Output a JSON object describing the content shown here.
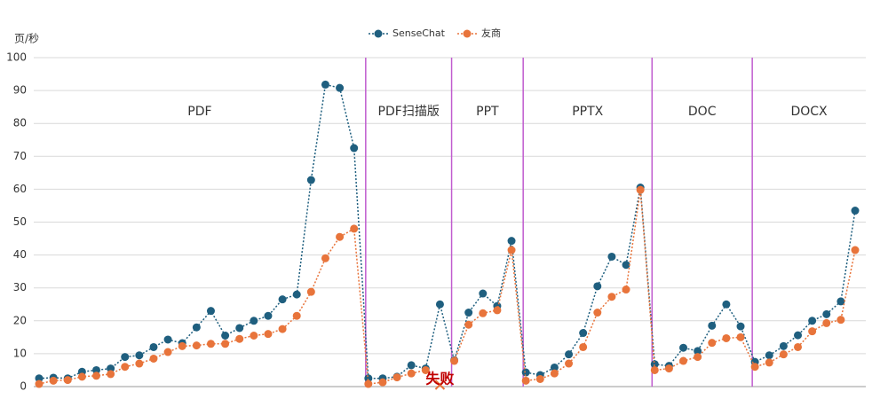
{
  "chart_data": {
    "type": "line",
    "y_label": "页/秒",
    "categories": [
      null,
      null,
      null,
      null,
      null,
      null,
      null,
      null,
      null,
      null,
      null,
      null,
      null,
      null,
      null,
      null,
      null,
      null,
      null,
      null,
      null,
      null,
      null,
      null,
      null,
      null,
      null,
      null,
      null,
      null,
      null,
      null,
      null,
      null,
      null,
      null,
      null,
      null,
      null,
      null,
      null,
      null,
      null,
      null,
      null,
      null,
      null,
      null,
      null,
      null,
      null,
      null,
      null,
      null,
      null,
      null,
      null,
      null
    ],
    "sections": [
      {
        "label": "PDF",
        "count": 23
      },
      {
        "label": "PDF扫描版",
        "count": 6
      },
      {
        "label": "PPT",
        "count": 5
      },
      {
        "label": "PPTX",
        "count": 9
      },
      {
        "label": "DOC",
        "count": 7
      },
      {
        "label": "DOCX",
        "count": 8
      }
    ],
    "series": [
      {
        "name": "SenseChat",
        "color": "#1f5f7f",
        "values": [
          2.5,
          2.7,
          2.5,
          4.5,
          5,
          5.5,
          9,
          9.5,
          12,
          14.3,
          13.2,
          18,
          23,
          15.5,
          17.8,
          20,
          21.5,
          26.5,
          28,
          62.8,
          91.8,
          90.8,
          72.5,
          2.5,
          2.5,
          3,
          6.5,
          5.5,
          25,
          8,
          22.5,
          28.3,
          24.5,
          44.3,
          4.3,
          3.5,
          5.8,
          9.8,
          16.3,
          30.5,
          39.5,
          37,
          60.5,
          6.8,
          6.3,
          11.8,
          10.8,
          18.5,
          25,
          18.3,
          7.5,
          9.5,
          12.3,
          15.6,
          20,
          22,
          25.9,
          53.5
        ]
      },
      {
        "name": "友商",
        "color": "#e8743b",
        "values": [
          0.8,
          1.8,
          2,
          3,
          3.3,
          3.8,
          6,
          7,
          8.5,
          10.5,
          12.3,
          12.5,
          13,
          13,
          14.5,
          15.5,
          16,
          17.5,
          21.5,
          28.8,
          39,
          45.5,
          48,
          0.8,
          1.3,
          2.8,
          4,
          5,
          null,
          7.8,
          18.8,
          22.3,
          23.2,
          41.5,
          1.8,
          2.3,
          4,
          7,
          12,
          22.5,
          27.3,
          29.5,
          59.8,
          5,
          5.5,
          7.8,
          9,
          13.3,
          14.7,
          15,
          6,
          7.3,
          9.8,
          12,
          16.8,
          19.3,
          20.3,
          41.5
        ]
      }
    ],
    "annotations": [
      {
        "text": "失败",
        "index": 28,
        "color": "#c00000"
      }
    ],
    "ylim": [
      0,
      100
    ],
    "yticks": [
      0,
      10,
      20,
      30,
      40,
      50,
      60,
      70,
      80,
      90,
      100
    ],
    "grid": true,
    "separator_color": "#c05ccf"
  }
}
